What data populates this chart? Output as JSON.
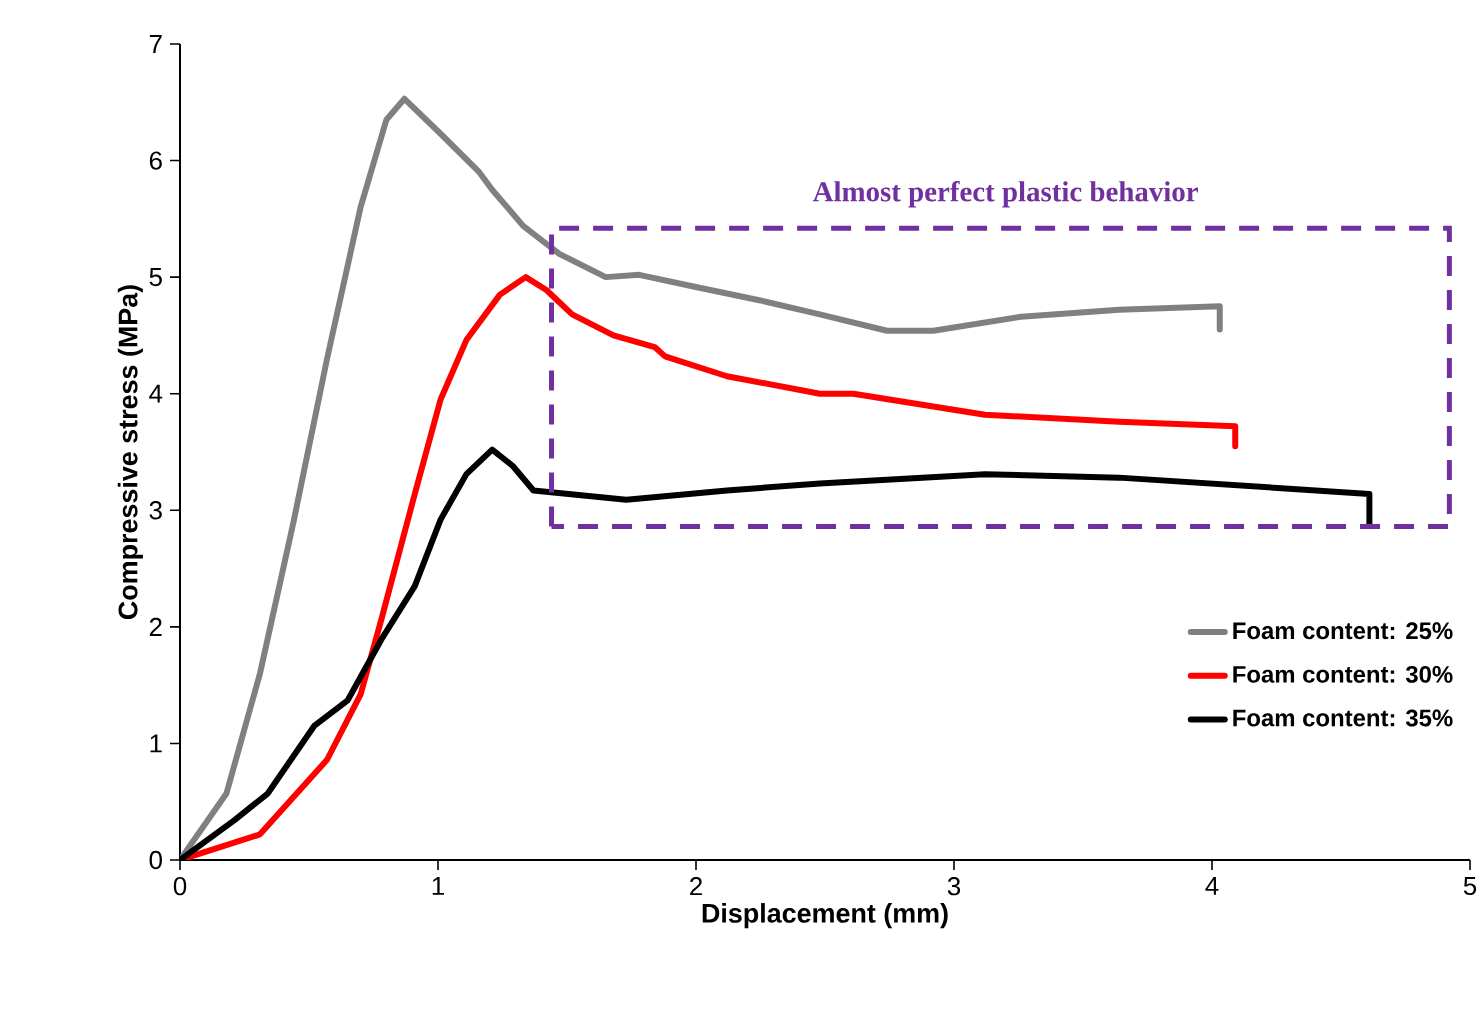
{
  "chart_data": {
    "type": "line",
    "xlabel": "Displacement (mm)",
    "ylabel": "Compressive stress (MPa)",
    "xlim": [
      0,
      5
    ],
    "ylim": [
      0,
      7
    ],
    "xticks": [
      0,
      1,
      2,
      3,
      4,
      5
    ],
    "yticks": [
      0,
      1,
      2,
      3,
      4,
      5,
      6,
      7
    ],
    "grid": false,
    "legend": "bottom right",
    "marker": "none",
    "line_style": "solid",
    "annotations": [
      "Almost perfect plastic behavior"
    ],
    "series": [
      {
        "name": "Foam content: 25%",
        "color": "#808080",
        "x": [
          0,
          0.18,
          0.31,
          0.44,
          0.57,
          0.7,
          0.8,
          0.87,
          1.01,
          1.16,
          1.21,
          1.33,
          1.47,
          1.65,
          1.78,
          1.99,
          2.25,
          2.48,
          2.74,
          2.92,
          3.26,
          3.64,
          4.03,
          4.03
        ],
        "values": [
          0,
          0.57,
          1.6,
          2.9,
          4.3,
          5.6,
          6.35,
          6.53,
          6.23,
          5.9,
          5.75,
          5.44,
          5.2,
          5.0,
          5.02,
          4.92,
          4.8,
          4.68,
          4.54,
          4.54,
          4.66,
          4.72,
          4.75,
          4.55
        ]
      },
      {
        "name": "Foam content: 30%",
        "color": "#ff0000",
        "x": [
          0,
          0.31,
          0.57,
          0.7,
          0.78,
          0.91,
          1.01,
          1.11,
          1.24,
          1.34,
          1.42,
          1.52,
          1.68,
          1.84,
          1.88,
          2.12,
          2.48,
          2.61,
          3.12,
          3.64,
          4.09,
          4.09
        ],
        "values": [
          0,
          0.22,
          0.86,
          1.42,
          2.06,
          3.14,
          3.95,
          4.46,
          4.85,
          5.0,
          4.89,
          4.68,
          4.5,
          4.4,
          4.32,
          4.15,
          4.0,
          4.0,
          3.82,
          3.76,
          3.72,
          3.55
        ]
      },
      {
        "name": "Foam content: 35%",
        "color": "#000000",
        "x": [
          0,
          0.21,
          0.34,
          0.52,
          0.65,
          0.78,
          0.91,
          1.01,
          1.11,
          1.21,
          1.29,
          1.37,
          1.73,
          2.12,
          2.48,
          3.12,
          3.64,
          4.61,
          4.61
        ],
        "values": [
          0,
          0.34,
          0.57,
          1.15,
          1.37,
          1.89,
          2.35,
          2.92,
          3.31,
          3.52,
          3.38,
          3.17,
          3.09,
          3.17,
          3.23,
          3.31,
          3.28,
          3.14,
          2.88
        ]
      }
    ]
  }
}
